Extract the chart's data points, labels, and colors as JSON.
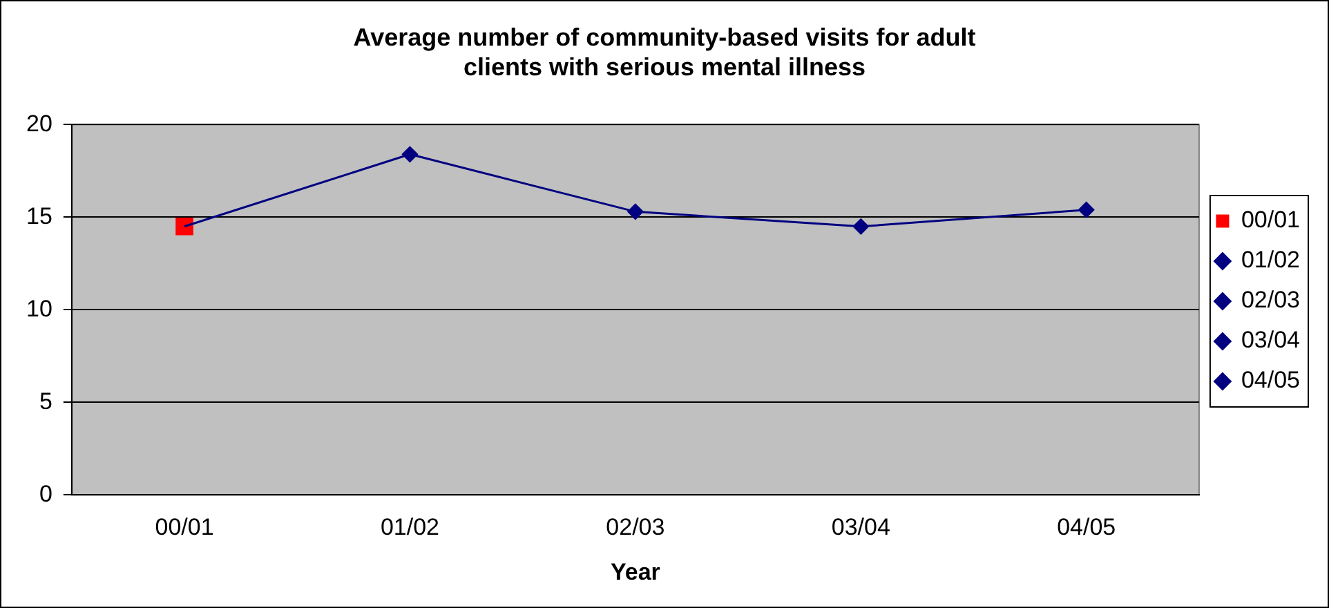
{
  "chart_data": {
    "type": "line",
    "title": "Average number of community-based visits for adult clients with serious mental illness",
    "xlabel": "Year",
    "categories": [
      "00/01",
      "01/02",
      "02/03",
      "03/04",
      "04/05"
    ],
    "series": [
      {
        "color": "#000080",
        "values": [
          14.5,
          18.4,
          15.3,
          14.5,
          15.4
        ],
        "marker": "none"
      },
      {
        "name": "00/01",
        "color": "#ff0000",
        "values": [
          14.5,
          null,
          null,
          null,
          null
        ],
        "marker": "square"
      },
      {
        "name": "01/02",
        "color": "#000080",
        "values": [
          null,
          18.4,
          null,
          null,
          null
        ],
        "marker": "diamond"
      },
      {
        "name": "02/03",
        "color": "#000080",
        "values": [
          null,
          null,
          15.3,
          null,
          null
        ],
        "marker": "diamond"
      },
      {
        "name": "03/04",
        "color": "#000080",
        "values": [
          null,
          null,
          null,
          14.5,
          null
        ],
        "marker": "diamond"
      },
      {
        "name": "04/05",
        "color": "#000080",
        "values": [
          null,
          null,
          null,
          null,
          15.4
        ],
        "marker": "diamond"
      }
    ],
    "ylim": [
      0,
      20
    ],
    "yticks": [
      0,
      5,
      10,
      15,
      20
    ],
    "grid": "y",
    "legend": "right",
    "line_style": "solid"
  }
}
